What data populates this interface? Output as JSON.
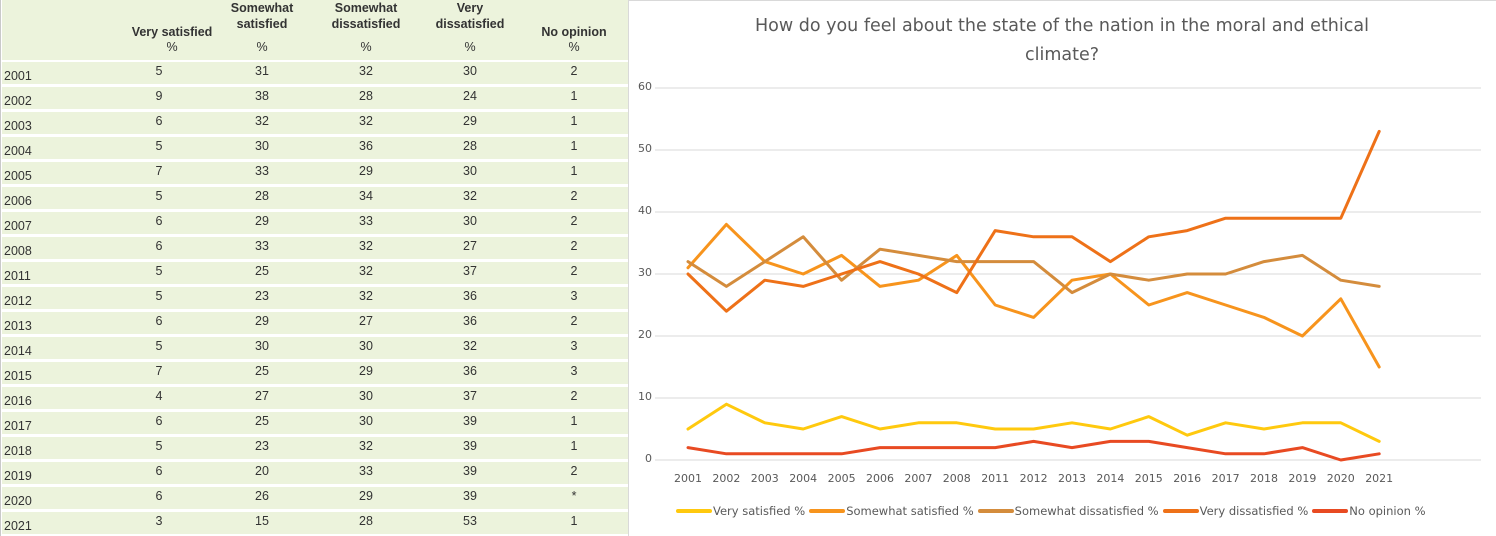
{
  "table": {
    "headers": [
      {
        "line1": "",
        "line2": "Very satisfied",
        "unit": "%"
      },
      {
        "line1": "Somewhat",
        "line2": "satisfied",
        "unit": "%"
      },
      {
        "line1": "Somewhat",
        "line2": "dissatisfied",
        "unit": "%"
      },
      {
        "line1": "Very",
        "line2": "dissatisfied",
        "unit": "%"
      },
      {
        "line1": "",
        "line2": "No opinion",
        "unit": "%"
      }
    ],
    "rows": [
      {
        "year": "2001",
        "values": [
          "5",
          "31",
          "32",
          "30",
          "2"
        ]
      },
      {
        "year": "2002",
        "values": [
          "9",
          "38",
          "28",
          "24",
          "1"
        ]
      },
      {
        "year": "2003",
        "values": [
          "6",
          "32",
          "32",
          "29",
          "1"
        ]
      },
      {
        "year": "2004",
        "values": [
          "5",
          "30",
          "36",
          "28",
          "1"
        ]
      },
      {
        "year": "2005",
        "values": [
          "7",
          "33",
          "29",
          "30",
          "1"
        ]
      },
      {
        "year": "2006",
        "values": [
          "5",
          "28",
          "34",
          "32",
          "2"
        ]
      },
      {
        "year": "2007",
        "values": [
          "6",
          "29",
          "33",
          "30",
          "2"
        ]
      },
      {
        "year": "2008",
        "values": [
          "6",
          "33",
          "32",
          "27",
          "2"
        ]
      },
      {
        "year": "2011",
        "values": [
          "5",
          "25",
          "32",
          "37",
          "2"
        ]
      },
      {
        "year": "2012",
        "values": [
          "5",
          "23",
          "32",
          "36",
          "3"
        ]
      },
      {
        "year": "2013",
        "values": [
          "6",
          "29",
          "27",
          "36",
          "2"
        ]
      },
      {
        "year": "2014",
        "values": [
          "5",
          "30",
          "30",
          "32",
          "3"
        ]
      },
      {
        "year": "2015",
        "values": [
          "7",
          "25",
          "29",
          "36",
          "3"
        ]
      },
      {
        "year": "2016",
        "values": [
          "4",
          "27",
          "30",
          "37",
          "2"
        ]
      },
      {
        "year": "2017",
        "values": [
          "6",
          "25",
          "30",
          "39",
          "1"
        ]
      },
      {
        "year": "2018",
        "values": [
          "5",
          "23",
          "32",
          "39",
          "1"
        ]
      },
      {
        "year": "2019",
        "values": [
          "6",
          "20",
          "33",
          "39",
          "2"
        ]
      },
      {
        "year": "2020",
        "values": [
          "6",
          "26",
          "29",
          "39",
          "*"
        ]
      },
      {
        "year": "2021",
        "values": [
          "3",
          "15",
          "28",
          "53",
          "1"
        ]
      }
    ]
  },
  "chart_data": {
    "type": "line",
    "title": "How do you feel about the state of the nation in the moral and ethical climate?",
    "title_lines": [
      "How do you feel about the state of the nation in the moral and ethical",
      "climate?"
    ],
    "xlabel": "",
    "ylabel": "",
    "categories": [
      "2001",
      "2002",
      "2003",
      "2004",
      "2005",
      "2006",
      "2007",
      "2008",
      "2011",
      "2012",
      "2013",
      "2014",
      "2015",
      "2016",
      "2017",
      "2018",
      "2019",
      "2020",
      "2021"
    ],
    "ylim": [
      0,
      60
    ],
    "yticks": [
      0,
      10,
      20,
      30,
      40,
      50,
      60
    ],
    "grid": true,
    "legend_position": "bottom",
    "series": [
      {
        "name": "Very satisfied %",
        "color": "#ffc90e",
        "values": [
          5,
          9,
          6,
          5,
          7,
          5,
          6,
          6,
          5,
          5,
          6,
          5,
          7,
          4,
          6,
          5,
          6,
          6,
          3
        ]
      },
      {
        "name": "Somewhat satisfied %",
        "color": "#f7941d",
        "values": [
          31,
          38,
          32,
          30,
          33,
          28,
          29,
          33,
          25,
          23,
          29,
          30,
          25,
          27,
          25,
          23,
          20,
          26,
          15
        ]
      },
      {
        "name": "Somewhat dissatisfied %",
        "color": "#d48c3c",
        "values": [
          32,
          28,
          32,
          36,
          29,
          34,
          33,
          32,
          32,
          32,
          27,
          30,
          29,
          30,
          30,
          32,
          33,
          29,
          28
        ]
      },
      {
        "name": "Very dissatisfied %",
        "color": "#ee7118",
        "values": [
          30,
          24,
          29,
          28,
          30,
          32,
          30,
          27,
          37,
          36,
          36,
          32,
          36,
          37,
          39,
          39,
          39,
          39,
          53
        ]
      },
      {
        "name": "No opinion %",
        "color": "#e84a22",
        "values": [
          2,
          1,
          1,
          1,
          1,
          2,
          2,
          2,
          2,
          3,
          2,
          3,
          3,
          2,
          1,
          1,
          2,
          0,
          1
        ]
      }
    ]
  },
  "colors": {
    "table_row_bg": "#ecf3dc",
    "gridline": "#d9d9d9",
    "text": "#595959"
  }
}
